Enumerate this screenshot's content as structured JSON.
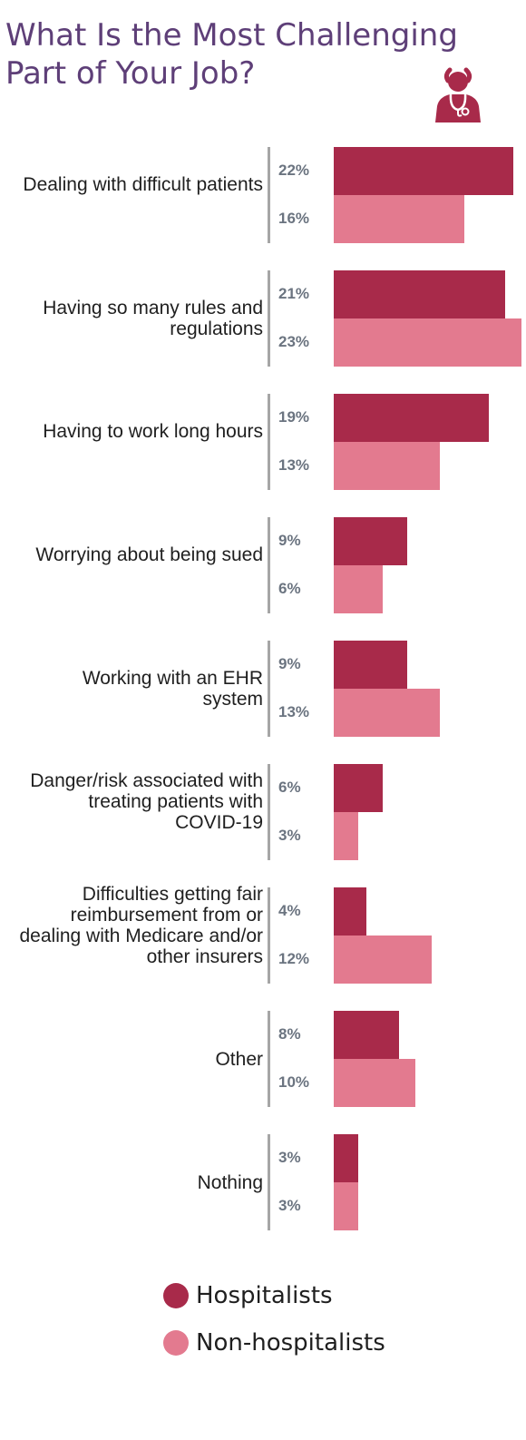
{
  "chart_data": {
    "type": "bar",
    "orientation": "horizontal",
    "title": "What Is the Most Challenging Part of Your Job?",
    "categories": [
      "Dealing with difficult patients",
      "Having so many rules and regulations",
      "Having to work long hours",
      "Worrying about being sued",
      "Working with an EHR system",
      "Danger/risk associated with treating patients with COVID-19",
      "Difficulties getting fair reimbursement from or dealing with Medicare and/or other insurers",
      "Other",
      "Nothing"
    ],
    "series": [
      {
        "name": "Hospitalists",
        "color": "#a82a4a",
        "values": [
          22,
          21,
          19,
          9,
          9,
          6,
          4,
          8,
          3
        ],
        "labels": [
          "22%",
          "21%",
          "19%",
          "9%",
          "9%",
          "6%",
          "4%",
          "8%",
          "3%"
        ]
      },
      {
        "name": "Non-hospitalists",
        "color": "#e37a8f",
        "values": [
          16,
          23,
          13,
          6,
          13,
          3,
          12,
          10,
          3
        ],
        "labels": [
          "16%",
          "23%",
          "13%",
          "6%",
          "13%",
          "3%",
          "12%",
          "10%",
          "3%"
        ]
      }
    ],
    "xlim": [
      0,
      23
    ],
    "legend": "bottom-left",
    "grid": false
  },
  "icon": "doctor-stethoscope-icon"
}
